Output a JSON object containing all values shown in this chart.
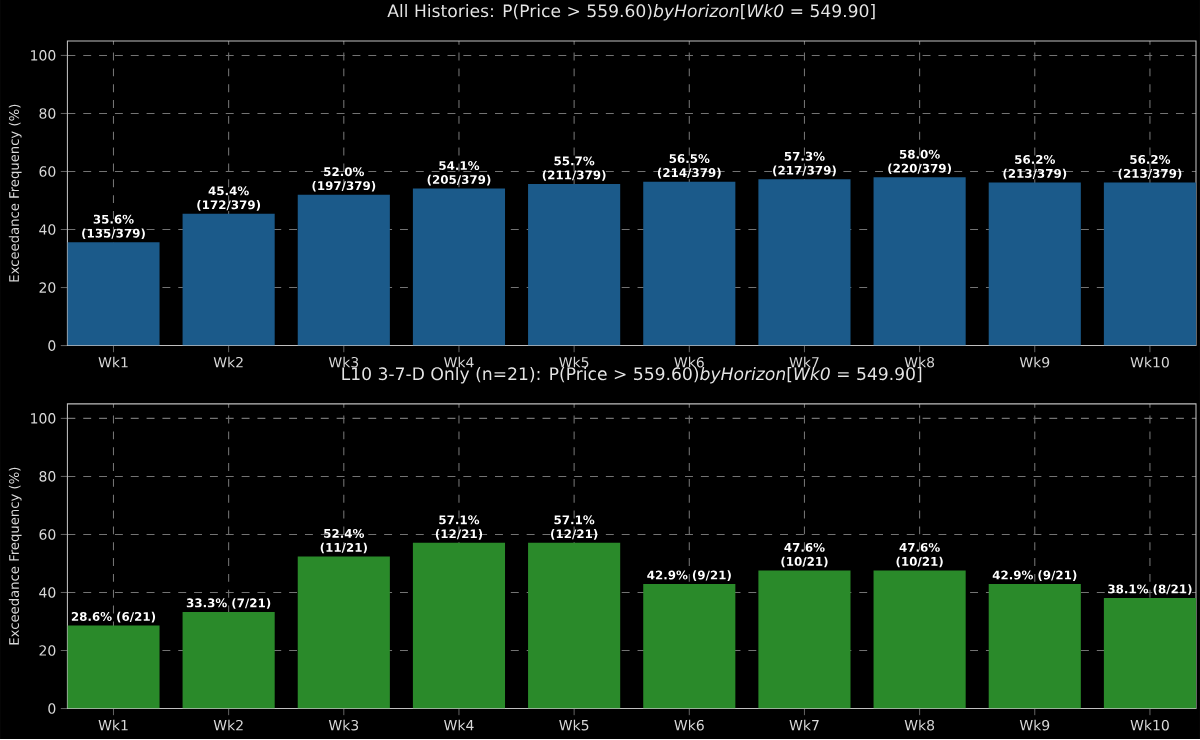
{
  "chart_data": [
    {
      "type": "bar",
      "title": "All Histories: P(Price > 559.60)*byHorizon*[*Wk0* = 549.90]",
      "ylabel": "Exceedance Frequency (%)",
      "categories": [
        "Wk1",
        "Wk2",
        "Wk3",
        "Wk4",
        "Wk5",
        "Wk6",
        "Wk7",
        "Wk8",
        "Wk9",
        "Wk10"
      ],
      "values": [
        35.6,
        45.4,
        52.0,
        54.1,
        55.7,
        56.5,
        57.3,
        58.0,
        56.2,
        56.2
      ],
      "value_labels": [
        "35.6% (135/379)",
        "45.4% (172/379)",
        "52.0% (197/379)",
        "54.1% (205/379)",
        "55.7% (211/379)",
        "56.5% (214/379)",
        "57.3% (217/379)",
        "58.0% (220/379)",
        "56.2% (213/379)",
        "56.2% (213/379)"
      ],
      "color": "#1b5a8a",
      "ylim": [
        0,
        105
      ],
      "yticks": [
        0,
        20,
        40,
        60,
        80,
        100
      ],
      "grid": true
    },
    {
      "type": "bar",
      "title": "L10 3-7-D Only (n=21): P(Price > 559.60)*byHorizon*[*Wk0* = 549.90]",
      "ylabel": "Exceedance Frequency (%)",
      "categories": [
        "Wk1",
        "Wk2",
        "Wk3",
        "Wk4",
        "Wk5",
        "Wk6",
        "Wk7",
        "Wk8",
        "Wk9",
        "Wk10"
      ],
      "values": [
        28.6,
        33.3,
        52.4,
        57.1,
        57.1,
        42.9,
        47.6,
        47.6,
        42.9,
        38.1
      ],
      "value_labels": [
        "28.6% (6/21)",
        "33.3% (7/21)",
        "52.4% (11/21)",
        "57.1% (12/21)",
        "57.1% (12/21)",
        "42.9% (9/21)",
        "47.6% (10/21)",
        "47.6% (10/21)",
        "42.9% (9/21)",
        "38.1% (8/21)"
      ],
      "color": "#2a8a2a",
      "ylim": [
        0,
        105
      ],
      "yticks": [
        0,
        20,
        40,
        60,
        80,
        100
      ],
      "grid": true
    }
  ]
}
